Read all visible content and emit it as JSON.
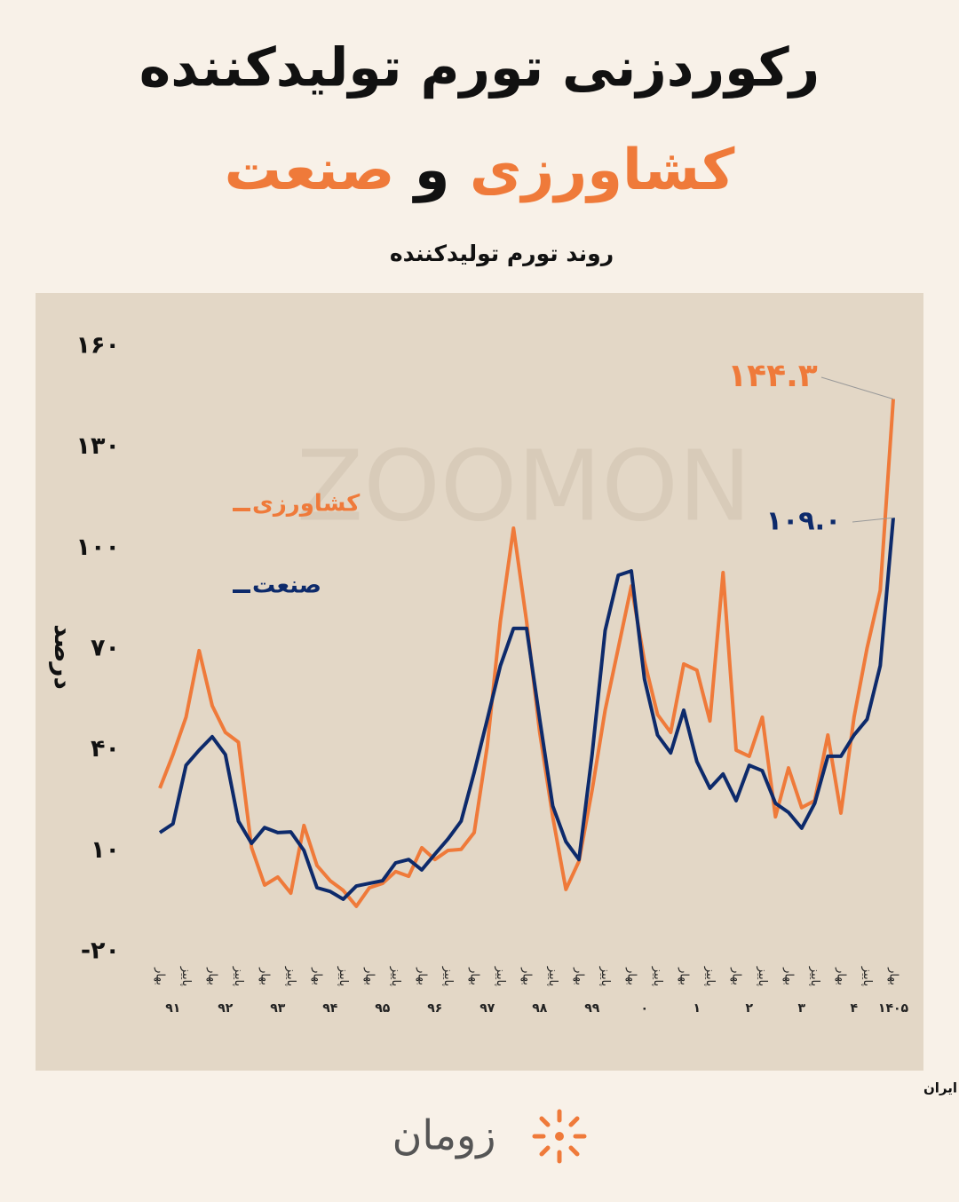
{
  "title": "رکوردزنی تورم تولیدکننده",
  "subtitle_parts": [
    "کشاورزی",
    "و",
    "صنعت"
  ],
  "source": "منبع داده: مرکز آمار ایران",
  "brand": "زومان",
  "chart_data": {
    "type": "line",
    "title": "روند تورم تولیدکننده",
    "watermark": "ZOOMON",
    "ylabel": "درصد",
    "ylim": [
      -20,
      160
    ],
    "yticks": [
      {
        "value": 160,
        "label": "۱۶۰"
      },
      {
        "value": 130,
        "label": "۱۳۰"
      },
      {
        "value": 100,
        "label": "۱۰۰"
      },
      {
        "value": 70,
        "label": "۷۰"
      },
      {
        "value": 40,
        "label": "۴۰"
      },
      {
        "value": 10,
        "label": "۱۰"
      },
      {
        "value": -20,
        "label": "-۲۰"
      }
    ],
    "grid": false,
    "legend": "upper-left",
    "categories": [
      "بهار",
      null,
      "پاییز",
      null,
      "بهار",
      null,
      "پاییز",
      null,
      "بهار",
      null,
      "پاییز",
      null,
      "بهار",
      null,
      "پاییز",
      null,
      "بهار",
      null,
      "پاییز",
      null,
      "بهار",
      null,
      "پاییز",
      null,
      "بهار",
      null,
      "پاییز",
      null,
      "بهار",
      null,
      "پاییز",
      null,
      "بهار",
      null,
      "پاییز",
      null,
      "بهار",
      null,
      "پاییز",
      null,
      "بهار",
      null,
      "پاییز",
      null,
      "بهار",
      null,
      "پاییز",
      null,
      "بهار",
      null,
      "پاییز",
      null,
      "بهار",
      null,
      "پاییز",
      null,
      "بهار"
    ],
    "year_labels": [
      "۹۱",
      "۹۲",
      "۹۳",
      "۹۴",
      "۹۵",
      "۹۶",
      "۹۷",
      "۹۸",
      "۹۹",
      "۰",
      "۱",
      "۲",
      "۳",
      "۴",
      "۱۴۰۵"
    ],
    "series": [
      {
        "name": "کشاورزی",
        "color": "#ef7a3a",
        "values": [
          28.6,
          38.6,
          49.7,
          69.5,
          53.1,
          45.2,
          42.3,
          10.9,
          -0.2,
          2.2,
          -2.6,
          17.5,
          5.6,
          1.1,
          -1.8,
          -6.5,
          -1.0,
          0.3,
          3.8,
          2.4,
          10.9,
          7.4,
          10.1,
          10.4,
          15.4,
          41.2,
          78.2,
          105.9,
          78.2,
          45.2,
          20.1,
          -1.5,
          6.9,
          28.0,
          51.8,
          70.3,
          88.7,
          66.3,
          50.5,
          45.2,
          65.5,
          63.7,
          48.6,
          92.7,
          39.9,
          38.1,
          49.7,
          20.1,
          34.6,
          22.8,
          24.9,
          44.4,
          21.2,
          49.7,
          70.3,
          87.4,
          144.3
        ],
        "value_labels": [
          null,
          null,
          null,
          null,
          null,
          null,
          null,
          null,
          null,
          null,
          null,
          null,
          null,
          null,
          null,
          null,
          null,
          null,
          null,
          null,
          null,
          null,
          null,
          null,
          null,
          null,
          null,
          null,
          null,
          null,
          null,
          null,
          null,
          null,
          null,
          null,
          null,
          null,
          null,
          null,
          null,
          null,
          null,
          null,
          null,
          null,
          null,
          null,
          null,
          null,
          null,
          null,
          null,
          null,
          null,
          null,
          "۱۴۴.۳"
        ]
      },
      {
        "name": "صنعت",
        "color": "#0d2a6b",
        "values": [
          15.4,
          18.0,
          35.4,
          39.9,
          43.9,
          38.6,
          18.8,
          12.2,
          16.9,
          15.4,
          15.6,
          10.1,
          -1.0,
          -2.1,
          -4.4,
          -0.5,
          0.3,
          1.1,
          6.4,
          7.4,
          4.3,
          9.0,
          13.5,
          18.8,
          33.3,
          49.1,
          65.0,
          76.1,
          76.1,
          49.1,
          23.3,
          12.7,
          7.4,
          38.6,
          75.5,
          91.9,
          93.2,
          61.0,
          44.4,
          39.1,
          51.8,
          36.5,
          28.6,
          32.8,
          24.9,
          35.4,
          33.8,
          24.1,
          21.4,
          16.7,
          24.1,
          38.1,
          38.1,
          44.4,
          49.1,
          65.0,
          109.0
        ],
        "value_labels": [
          null,
          null,
          null,
          null,
          null,
          null,
          null,
          null,
          null,
          null,
          null,
          null,
          null,
          null,
          null,
          null,
          null,
          null,
          null,
          null,
          null,
          null,
          null,
          null,
          null,
          null,
          null,
          null,
          null,
          null,
          null,
          null,
          null,
          null,
          null,
          null,
          null,
          null,
          null,
          null,
          null,
          null,
          null,
          null,
          null,
          null,
          null,
          null,
          null,
          null,
          null,
          null,
          null,
          null,
          null,
          null,
          "۱۰۹.۰"
        ]
      }
    ]
  }
}
